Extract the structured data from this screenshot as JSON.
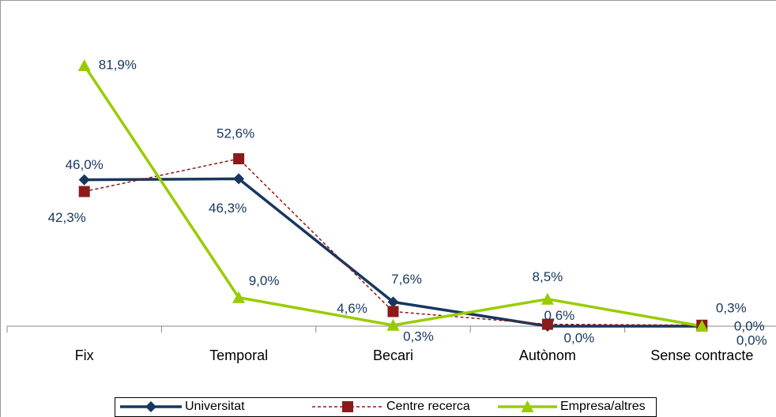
{
  "chart_data": {
    "type": "line",
    "categories": [
      "Fix",
      "Temporal",
      "Becari",
      "Autònom",
      "Sense contracte"
    ],
    "ylim": [
      0,
      100
    ],
    "legend": "bottom",
    "series": [
      {
        "name": "Universitat",
        "color": "#17375e",
        "marker": "diamond",
        "dash": false,
        "values": [
          46.0,
          46.3,
          7.6,
          0.0,
          0.0
        ],
        "value_labels": [
          "46,0%",
          "46,3%",
          "7,6%",
          "0,0%",
          "0,0%"
        ]
      },
      {
        "name": "Centre recerca",
        "color": "#8b1a1a",
        "marker": "square",
        "dash": true,
        "values": [
          42.3,
          52.6,
          4.6,
          0.6,
          0.3
        ],
        "value_labels": [
          "42,3%",
          "52,6%",
          "4,6%",
          "0,6%",
          "0,3%"
        ]
      },
      {
        "name": "Empresa/altres",
        "color": "#99cc00",
        "marker": "triangle",
        "dash": false,
        "values": [
          81.9,
          9.0,
          0.3,
          8.5,
          0.0
        ],
        "value_labels": [
          "81,9%",
          "9,0%",
          "0,3%",
          "8,5%",
          "0,0%"
        ]
      }
    ]
  }
}
